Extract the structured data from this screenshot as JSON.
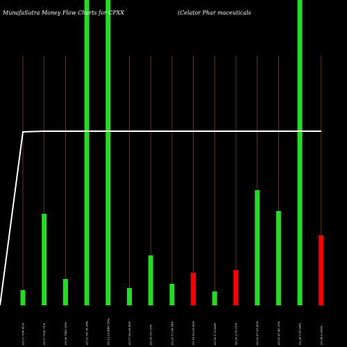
{
  "chart_data": {
    "type": "bar",
    "title_left": "MunafaSutra  Money Flow  Charts for CPXX",
    "title_right": "(Celator Phar                                    maceuticals",
    "categories": [
      "03.17.79% 41%",
      "03.17.70% 71%",
      "03.06.7463 91%",
      "03.12.14.78.39%",
      "03.13.13.44% 16%",
      "03.17.26.06.85%",
      "03.20.7/3.72%",
      "03.21.17.06.54%",
      "03.18.10.03.65%",
      "03.22.1.73.08%",
      "03.20.3.75.71%",
      "03.23.07.92.82%",
      "03.25.97.45 21%",
      "03.24.7.41.04%",
      "03.24.3.360%"
    ],
    "values": [
      22,
      132,
      38,
      440,
      440,
      25,
      72,
      31,
      47,
      20,
      51,
      166,
      136,
      440,
      101
    ],
    "colors": [
      "#22dd22",
      "#22dd22",
      "#22dd22",
      "#22dd22",
      "#22dd22",
      "#22dd22",
      "#22dd22",
      "#22dd22",
      "#ff0000",
      "#22dd22",
      "#ff0000",
      "#22dd22",
      "#22dd22",
      "#22dd22",
      "#ff0000"
    ],
    "line_values": [
      0,
      250,
      251,
      251,
      251,
      251,
      251,
      251,
      251,
      251,
      251,
      251,
      251,
      251,
      251,
      251
    ],
    "ylim": [
      0,
      440
    ],
    "grid_color": "#8a4a1a",
    "line_color": "#ffffff",
    "background": "#000000"
  }
}
